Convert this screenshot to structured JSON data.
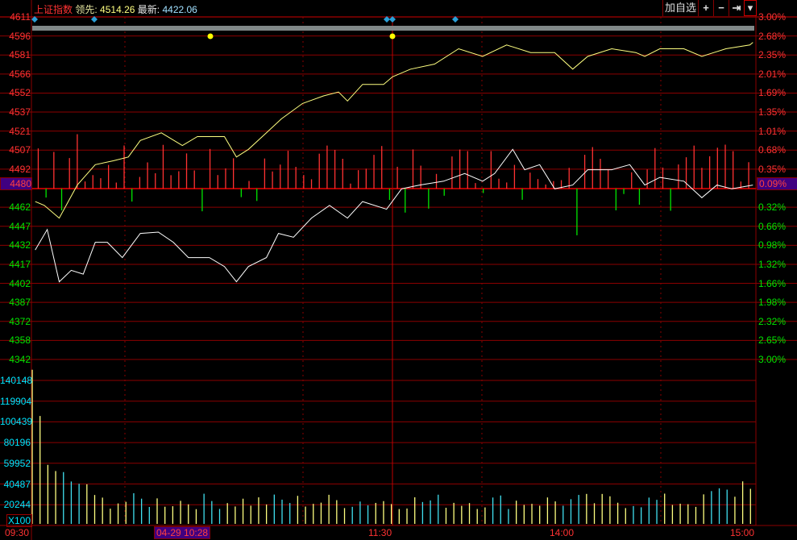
{
  "header": {
    "index_name": "上证指数",
    "lead_label": "领先:",
    "lead_value": "4514.26",
    "latest_label": "最新:",
    "latest_value": "4422.06"
  },
  "toolbar": {
    "add_watchlist": "加自选",
    "zoom_in": "+",
    "zoom_out": "−",
    "jump_end": "⇥",
    "menu": "▾"
  },
  "price_axis": {
    "left": [
      "4611",
      "4596",
      "4581",
      "4566",
      "4552",
      "4537",
      "4521",
      "4507",
      "4492",
      "4480",
      "4462",
      "4447",
      "4432",
      "4417",
      "4402",
      "4387",
      "4372",
      "4358",
      "4342"
    ],
    "right": [
      "3.00%",
      "2.68%",
      "2.35%",
      "2.01%",
      "1.69%",
      "1.35%",
      "1.01%",
      "0.68%",
      "0.35%",
      "0.09%",
      "0.32%",
      "0.66%",
      "0.98%",
      "1.32%",
      "1.66%",
      "1.98%",
      "2.32%",
      "2.65%",
      "3.00%"
    ],
    "highlight_left": "4480",
    "highlight_right": "0.09%",
    "min": 4342,
    "max": 4611
  },
  "volume_axis": {
    "labels": [
      "140148",
      "119904",
      "100439",
      "80196",
      "59952",
      "40487",
      "20244"
    ],
    "unit": "X100",
    "max": 160000
  },
  "time_axis": {
    "labels": [
      "09:30",
      "11:30",
      "14:00",
      "15:00"
    ],
    "cursor_label": "04-29 10:28"
  },
  "colors": {
    "up": "#ff3232",
    "down": "#00e600",
    "price_line": "#ffff80",
    "lead_line": "#ffffff",
    "grid": "#8b0000",
    "volume_a": "#ffff80",
    "volume_b": "#40e0f0",
    "highlight": "#400080"
  },
  "series": {
    "price_line": [
      [
        1,
        4466
      ],
      [
        4,
        4463
      ],
      [
        9,
        4453
      ],
      [
        15,
        4479
      ],
      [
        21,
        4495
      ],
      [
        27,
        4498
      ],
      [
        32,
        4501
      ],
      [
        36,
        4514
      ],
      [
        43,
        4520
      ],
      [
        50,
        4510
      ],
      [
        55,
        4517
      ],
      [
        59,
        4517
      ],
      [
        64,
        4517
      ],
      [
        68,
        4501
      ],
      [
        72,
        4507
      ],
      [
        78,
        4520
      ],
      [
        83,
        4531
      ],
      [
        90,
        4543
      ],
      [
        97,
        4549
      ],
      [
        102,
        4552
      ],
      [
        105,
        4545
      ],
      [
        110,
        4558
      ],
      [
        117,
        4558
      ],
      [
        120,
        4564
      ],
      [
        126,
        4570
      ],
      [
        134,
        4574
      ],
      [
        142,
        4586
      ],
      [
        150,
        4580
      ],
      [
        158,
        4589
      ],
      [
        166,
        4583
      ],
      [
        174,
        4583
      ],
      [
        180,
        4570
      ],
      [
        185,
        4580
      ],
      [
        193,
        4586
      ],
      [
        201,
        4583
      ],
      [
        204,
        4580
      ],
      [
        209,
        4586
      ],
      [
        217,
        4586
      ],
      [
        223,
        4580
      ],
      [
        231,
        4586
      ],
      [
        239,
        4589
      ],
      [
        240,
        4591
      ]
    ],
    "lead_line": [
      [
        1,
        4428
      ],
      [
        5,
        4444
      ],
      [
        9,
        4403
      ],
      [
        13,
        4412
      ],
      [
        17,
        4409
      ],
      [
        21,
        4434
      ],
      [
        25,
        4434
      ],
      [
        30,
        4422
      ],
      [
        36,
        4441
      ],
      [
        42,
        4442
      ],
      [
        47,
        4434
      ],
      [
        52,
        4422
      ],
      [
        59,
        4422
      ],
      [
        64,
        4415
      ],
      [
        68,
        4403
      ],
      [
        72,
        4415
      ],
      [
        78,
        4422
      ],
      [
        82,
        4441
      ],
      [
        87,
        4438
      ],
      [
        93,
        4453
      ],
      [
        99,
        4463
      ],
      [
        105,
        4453
      ],
      [
        110,
        4466
      ],
      [
        118,
        4460
      ],
      [
        123,
        4476
      ],
      [
        129,
        4479
      ],
      [
        137,
        4482
      ],
      [
        144,
        4488
      ],
      [
        150,
        4482
      ],
      [
        154,
        4488
      ],
      [
        160,
        4507
      ],
      [
        164,
        4491
      ],
      [
        169,
        4495
      ],
      [
        174,
        4476
      ],
      [
        180,
        4479
      ],
      [
        185,
        4491
      ],
      [
        193,
        4491
      ],
      [
        199,
        4495
      ],
      [
        204,
        4479
      ],
      [
        209,
        4485
      ],
      [
        217,
        4482
      ],
      [
        223,
        4469
      ],
      [
        228,
        4479
      ],
      [
        233,
        4476
      ],
      [
        240,
        4479
      ]
    ]
  }
}
